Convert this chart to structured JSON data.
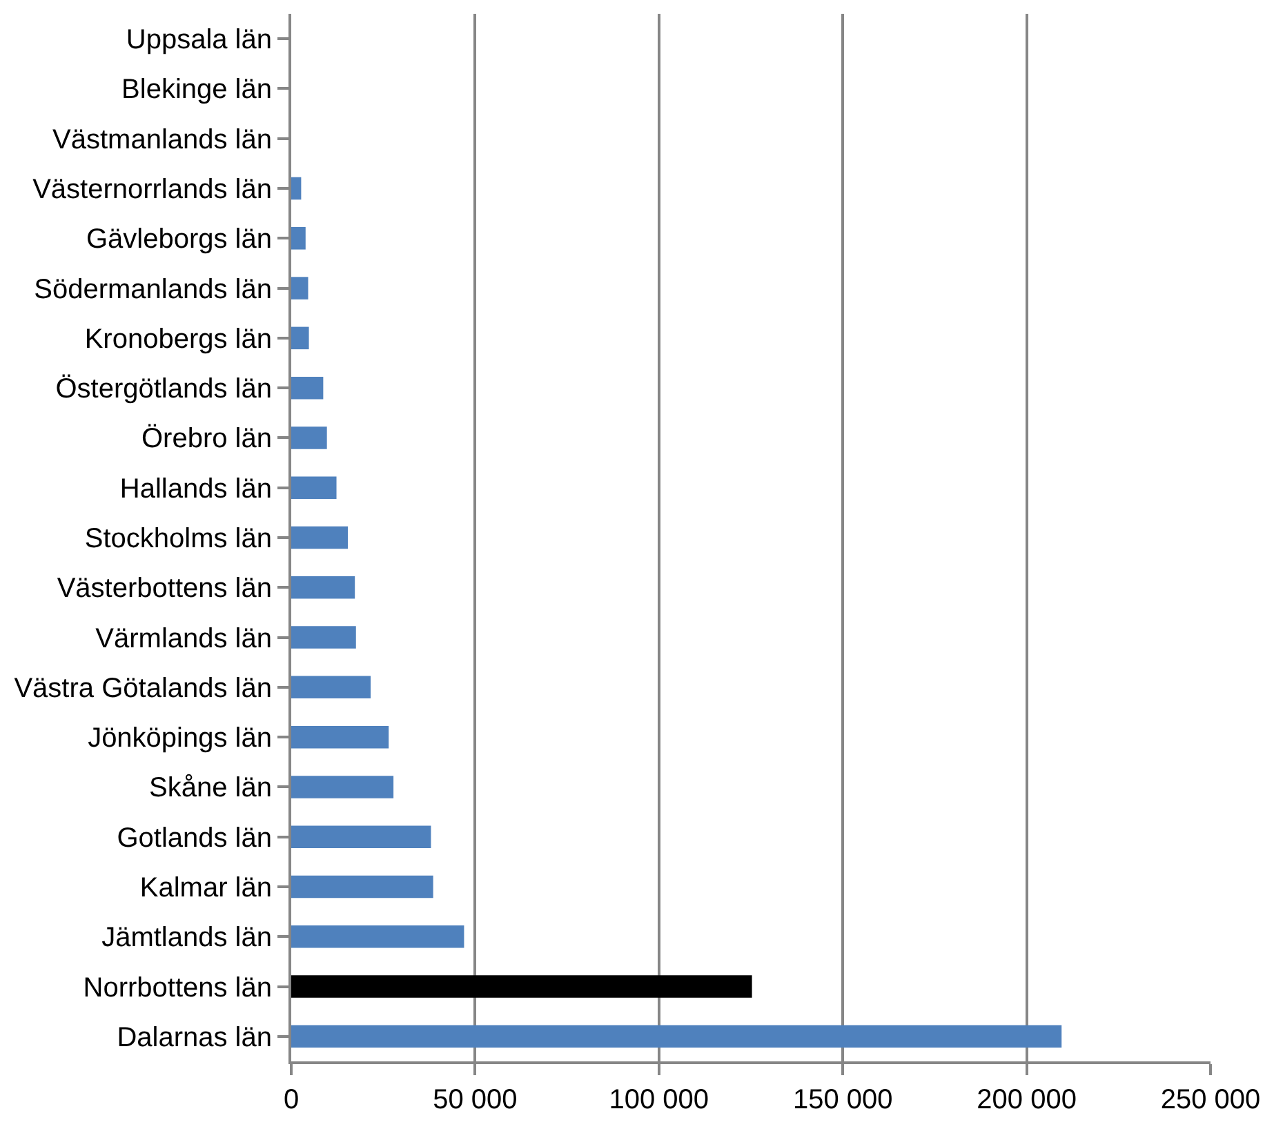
{
  "chart_data": {
    "type": "bar",
    "orientation": "horizontal",
    "categories": [
      "Uppsala län",
      "Blekinge län",
      "Västmanlands län",
      "Västernorrlands län",
      "Gävleborgs län",
      "Södermanlands län",
      "Kronobergs län",
      "Östergötlands län",
      "Örebro län",
      "Hallands län",
      "Stockholms län",
      "Västerbottens län",
      "Värmlands län",
      "Västra Götalands län",
      "Jönköpings län",
      "Skåne län",
      "Gotlands län",
      "Kalmar län",
      "Jämtlands län",
      "Norrbottens län",
      "Dalarnas län"
    ],
    "values": [
      0,
      0,
      0,
      2700,
      3900,
      4600,
      4800,
      8700,
      9700,
      12300,
      15400,
      17300,
      17600,
      21600,
      26500,
      27800,
      38000,
      38600,
      47000,
      125300,
      209500
    ],
    "colors": [
      "#4f81bd",
      "#4f81bd",
      "#4f81bd",
      "#4f81bd",
      "#4f81bd",
      "#4f81bd",
      "#4f81bd",
      "#4f81bd",
      "#4f81bd",
      "#4f81bd",
      "#4f81bd",
      "#4f81bd",
      "#4f81bd",
      "#4f81bd",
      "#4f81bd",
      "#4f81bd",
      "#4f81bd",
      "#4f81bd",
      "#4f81bd",
      "#000000",
      "#4f81bd"
    ],
    "xlim": [
      0,
      250000
    ],
    "xticks": [
      0,
      {
        "value": 50000,
        "label": "50 000"
      },
      {
        "value": 100000,
        "label": "100 000"
      },
      {
        "value": 150000,
        "label": "150 000"
      },
      {
        "value": 200000,
        "label": "200 000"
      },
      {
        "value": 250000,
        "label": "250 000"
      }
    ],
    "grid": "x"
  }
}
